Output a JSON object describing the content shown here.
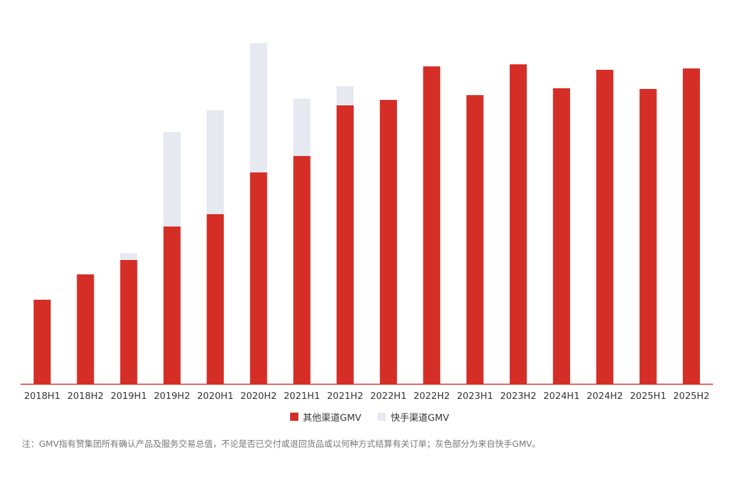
{
  "colors": {
    "other_channels": "#d42e27",
    "kuaishou": "#e6e9f0",
    "axis": "#d42e27",
    "tick_text": "#333333"
  },
  "legend": {
    "other_label": "其他渠道GMV",
    "kuaishou_label": "快手渠道GMV"
  },
  "footnote": "注：GMV指有赞集团所有确认产品及服务交易总值，不论是否已交付或退回货品或以何种方式结算有关订单；灰色部分为来自快手GMV。",
  "chart_data": {
    "type": "bar",
    "stacked": true,
    "categories": [
      "2018H1",
      "2018H2",
      "2019H1",
      "2019H2",
      "2020H1",
      "2020H2",
      "2021H1",
      "2021H2",
      "2022H1",
      "2022H2",
      "2023H1",
      "2023H2",
      "2024H1",
      "2024H2",
      "2025H1",
      "2025H2"
    ],
    "series": [
      {
        "name": "其他渠道GMV",
        "color": "#d42e27",
        "values": [
          123,
          160,
          181,
          230,
          248,
          309,
          333,
          407,
          415,
          464,
          422,
          467,
          432,
          459,
          431,
          461
        ]
      },
      {
        "name": "快手渠道GMV",
        "color": "#e6e9f0",
        "values": [
          0,
          0,
          10,
          138,
          152,
          189,
          84,
          28,
          0,
          0,
          0,
          0,
          0,
          0,
          0,
          0
        ]
      }
    ],
    "ylim": [
      0,
      500
    ],
    "y_axis_visible": false,
    "grid": false,
    "legend_position": "bottom-center"
  }
}
